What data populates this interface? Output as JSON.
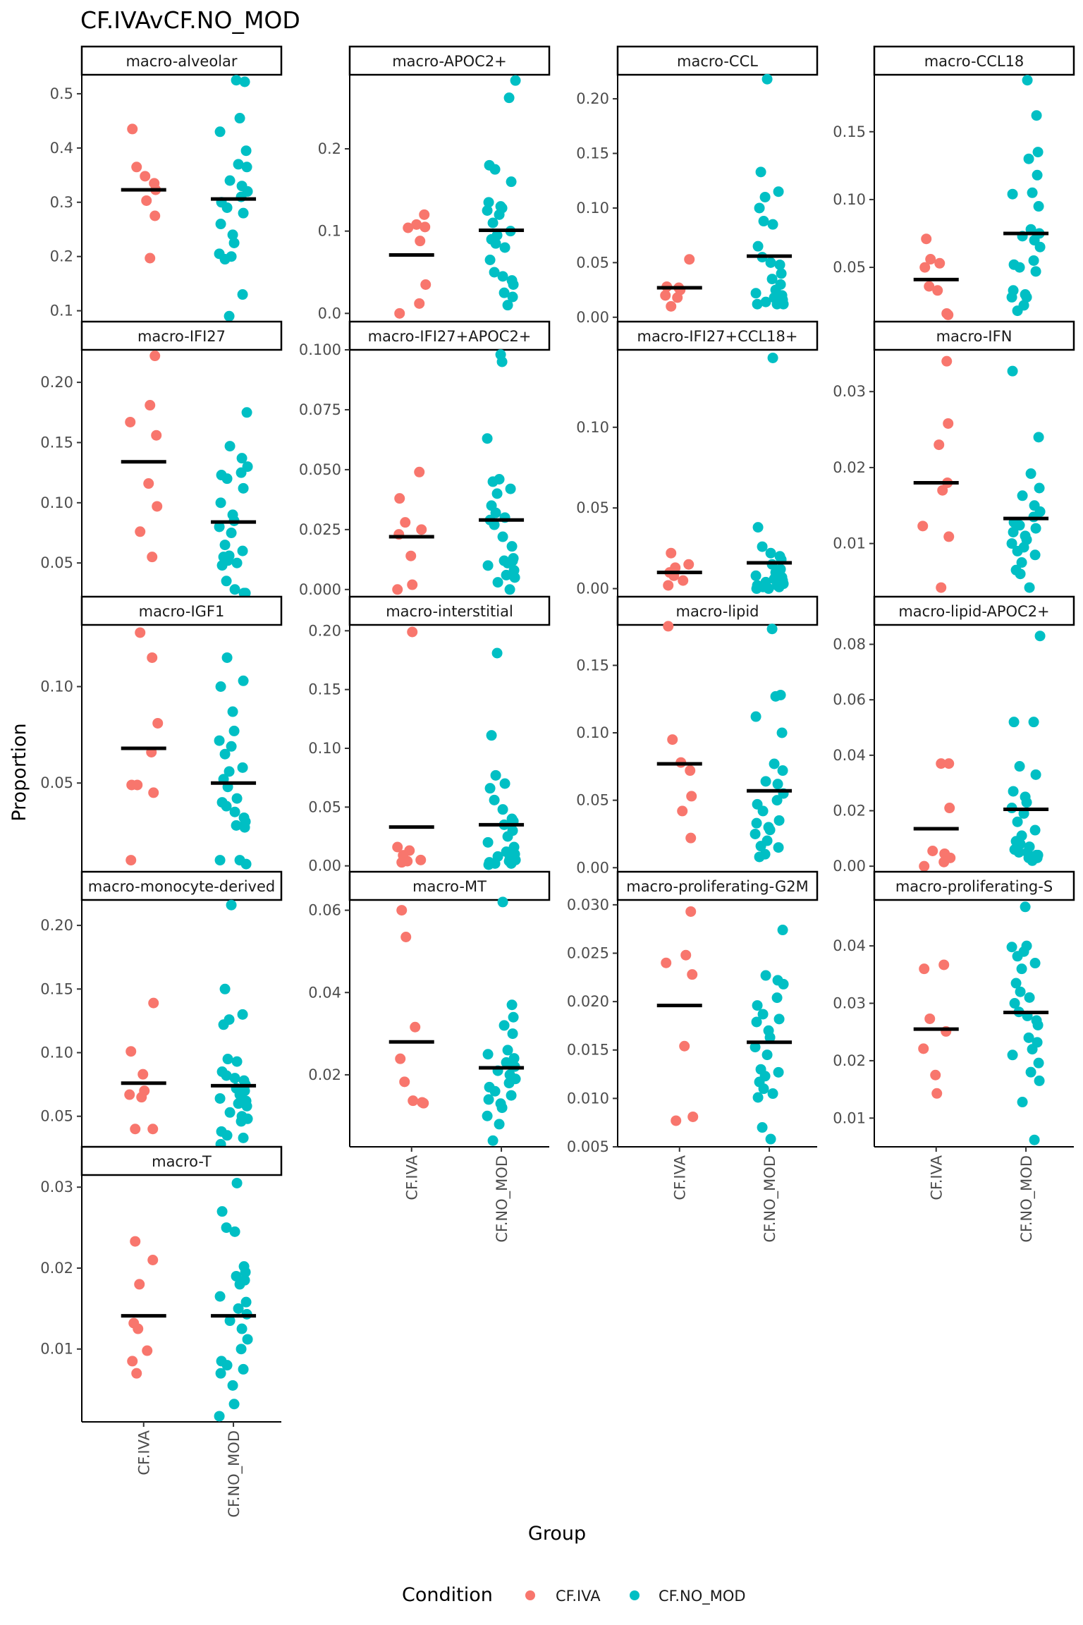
{
  "chart_data": {
    "type": "scatter",
    "title": "CF.IVAvCF.NO_MOD",
    "xlabel": "Group",
    "ylabel": "Proportion",
    "groups": [
      "CF.IVA",
      "CF.NO_MOD"
    ],
    "legend": {
      "title": "Condition",
      "position": "bottom",
      "entries": [
        {
          "label": "CF.IVA",
          "color": "#F8766D"
        },
        {
          "label": "CF.NO_MOD",
          "color": "#00BFC4"
        }
      ]
    },
    "mean_color": "#000000",
    "panels": [
      {
        "name": "macro-alveolar",
        "ylim": [
          0.08,
          0.535
        ],
        "ticks": [
          0.1,
          0.2,
          0.3,
          0.4,
          0.5
        ],
        "tick_labels": [
          "0.1",
          "0.2",
          "0.3",
          "0.4",
          "0.5"
        ],
        "means": [
          0.323,
          0.306
        ],
        "points": [
          [
            0.435,
            0.365,
            0.348,
            0.335,
            0.323,
            0.303,
            0.275,
            0.197
          ],
          [
            0.525,
            0.522,
            0.455,
            0.43,
            0.395,
            0.37,
            0.365,
            0.34,
            0.33,
            0.32,
            0.31,
            0.3,
            0.29,
            0.28,
            0.26,
            0.24,
            0.225,
            0.205,
            0.2,
            0.195,
            0.13,
            0.09
          ]
        ]
      },
      {
        "name": "macro-APOC2+",
        "ylim": [
          -0.01,
          0.29
        ],
        "ticks": [
          0.0,
          0.1,
          0.2
        ],
        "tick_labels": [
          "0.0",
          "0.1",
          "0.2"
        ],
        "means": [
          0.071,
          0.101
        ],
        "points": [
          [
            0.12,
            0.108,
            0.105,
            0.104,
            0.088,
            0.035,
            0.012,
            0.0
          ],
          [
            0.283,
            0.262,
            0.18,
            0.175,
            0.16,
            0.135,
            0.13,
            0.128,
            0.125,
            0.12,
            0.11,
            0.1,
            0.095,
            0.09,
            0.085,
            0.08,
            0.065,
            0.05,
            0.045,
            0.04,
            0.035,
            0.025,
            0.02,
            0.01
          ]
        ]
      },
      {
        "name": "macro-CCL",
        "ylim": [
          -0.004,
          0.222
        ],
        "ticks": [
          0.0,
          0.05,
          0.1,
          0.15,
          0.2
        ],
        "tick_labels": [
          "0.00",
          "0.05",
          "0.10",
          "0.15",
          "0.20"
        ],
        "means": [
          0.027,
          0.056
        ],
        "points": [
          [
            0.053,
            0.028,
            0.027,
            0.025,
            0.02,
            0.018,
            0.01
          ],
          [
            0.218,
            0.133,
            0.115,
            0.11,
            0.1,
            0.088,
            0.085,
            0.065,
            0.055,
            0.05,
            0.048,
            0.04,
            0.035,
            0.03,
            0.025,
            0.022,
            0.02,
            0.018,
            0.016,
            0.014,
            0.013,
            0.012,
            0.012,
            0.012
          ]
        ]
      },
      {
        "name": "macro-CCL18",
        "ylim": [
          0.01,
          0.192
        ],
        "ticks": [
          0.05,
          0.1,
          0.15
        ],
        "tick_labels": [
          "0.05",
          "0.10",
          "0.15"
        ],
        "means": [
          0.041,
          0.075
        ],
        "points": [
          [
            0.071,
            0.056,
            0.053,
            0.05,
            0.036,
            0.033,
            0.016,
            0.015
          ],
          [
            0.188,
            0.162,
            0.135,
            0.13,
            0.118,
            0.105,
            0.104,
            0.095,
            0.078,
            0.075,
            0.073,
            0.07,
            0.065,
            0.055,
            0.052,
            0.05,
            0.047,
            0.033,
            0.03,
            0.028,
            0.028,
            0.022,
            0.018
          ]
        ]
      },
      {
        "name": "macro-IFI27",
        "ylim": [
          0.022,
          0.227
        ],
        "ticks": [
          0.05,
          0.1,
          0.15,
          0.2
        ],
        "tick_labels": [
          "0.05",
          "0.10",
          "0.15",
          "0.20"
        ],
        "means": [
          0.134,
          0.084
        ],
        "points": [
          [
            0.222,
            0.181,
            0.167,
            0.156,
            0.116,
            0.097,
            0.076,
            0.055
          ],
          [
            0.175,
            0.147,
            0.137,
            0.13,
            0.125,
            0.123,
            0.12,
            0.112,
            0.1,
            0.09,
            0.085,
            0.08,
            0.075,
            0.065,
            0.06,
            0.056,
            0.055,
            0.052,
            0.05,
            0.048,
            0.035,
            0.028,
            0.025,
            0.025
          ]
        ]
      },
      {
        "name": "macro-IFI27+APOC2+",
        "ylim": [
          -0.003,
          0.1
        ],
        "ticks": [
          0.0,
          0.025,
          0.05,
          0.075,
          0.1
        ],
        "tick_labels": [
          "0.000",
          "0.025",
          "0.050",
          "0.075",
          "0.100"
        ],
        "means": [
          0.022,
          0.029
        ],
        "points": [
          [
            0.049,
            0.038,
            0.028,
            0.025,
            0.023,
            0.014,
            0.002,
            0.0
          ],
          [
            0.098,
            0.095,
            0.063,
            0.046,
            0.045,
            0.042,
            0.04,
            0.035,
            0.032,
            0.03,
            0.029,
            0.027,
            0.022,
            0.018,
            0.013,
            0.012,
            0.012,
            0.011,
            0.01,
            0.008,
            0.006,
            0.005,
            0.003,
            0.0
          ]
        ]
      },
      {
        "name": "macro-IFI27+CCL18+",
        "ylim": [
          -0.005,
          0.148
        ],
        "ticks": [
          0.0,
          0.05,
          0.1
        ],
        "tick_labels": [
          "0.00",
          "0.05",
          "0.10"
        ],
        "means": [
          0.01,
          0.016
        ],
        "points": [
          [
            0.022,
            0.015,
            0.013,
            0.01,
            0.008,
            0.005,
            0.002
          ],
          [
            0.143,
            0.038,
            0.026,
            0.022,
            0.02,
            0.018,
            0.015,
            0.012,
            0.01,
            0.008,
            0.007,
            0.006,
            0.005,
            0.004,
            0.003,
            0.003,
            0.002,
            0.002,
            0.001,
            0.001,
            0.0,
            0.0
          ]
        ]
      },
      {
        "name": "macro-IFN",
        "ylim": [
          0.003,
          0.0355
        ],
        "ticks": [
          0.01,
          0.02,
          0.03
        ],
        "tick_labels": [
          "0.01",
          "0.02",
          "0.03"
        ],
        "means": [
          0.018,
          0.0133
        ],
        "points": [
          [
            0.034,
            0.0258,
            0.023,
            0.018,
            0.017,
            0.0123,
            0.0109,
            0.0042
          ],
          [
            0.0327,
            0.024,
            0.0192,
            0.0173,
            0.0163,
            0.015,
            0.0142,
            0.0135,
            0.0128,
            0.0124,
            0.012,
            0.0115,
            0.011,
            0.0105,
            0.01,
            0.0095,
            0.009,
            0.0085,
            0.0075,
            0.0065,
            0.006,
            0.0042
          ]
        ]
      },
      {
        "name": "macro-IGF1",
        "ylim": [
          0.004,
          0.132
        ],
        "ticks": [
          0.05,
          0.1
        ],
        "tick_labels": [
          "0.05",
          "0.10"
        ],
        "means": [
          0.068,
          0.05
        ],
        "points": [
          [
            0.128,
            0.115,
            0.081,
            0.066,
            0.049,
            0.049,
            0.045,
            0.01
          ],
          [
            0.115,
            0.103,
            0.1,
            0.087,
            0.077,
            0.072,
            0.069,
            0.065,
            0.058,
            0.056,
            0.052,
            0.048,
            0.042,
            0.04,
            0.038,
            0.035,
            0.032,
            0.03,
            0.028,
            0.027,
            0.01,
            0.01,
            0.008
          ]
        ]
      },
      {
        "name": "macro-interstitial",
        "ylim": [
          -0.005,
          0.205
        ],
        "ticks": [
          0.0,
          0.05,
          0.1,
          0.15,
          0.2
        ],
        "tick_labels": [
          "0.00",
          "0.05",
          "0.10",
          "0.15",
          "0.20"
        ],
        "means": [
          0.033,
          0.035
        ],
        "points": [
          [
            0.199,
            0.016,
            0.013,
            0.009,
            0.005,
            0.004,
            0.003
          ],
          [
            0.181,
            0.111,
            0.077,
            0.07,
            0.066,
            0.056,
            0.048,
            0.04,
            0.038,
            0.035,
            0.03,
            0.025,
            0.02,
            0.016,
            0.012,
            0.01,
            0.008,
            0.006,
            0.005,
            0.004,
            0.003,
            0.002,
            0.002,
            0.001
          ]
        ]
      },
      {
        "name": "macro-lipid",
        "ylim": [
          -0.003,
          0.18
        ],
        "ticks": [
          0.0,
          0.05,
          0.1,
          0.15
        ],
        "tick_labels": [
          "0.00",
          "0.05",
          "0.10",
          "0.15"
        ],
        "means": [
          0.077,
          0.057
        ],
        "points": [
          [
            0.179,
            0.095,
            0.078,
            0.072,
            0.053,
            0.042,
            0.022
          ],
          [
            0.177,
            0.128,
            0.127,
            0.112,
            0.1,
            0.077,
            0.072,
            0.064,
            0.062,
            0.055,
            0.05,
            0.047,
            0.042,
            0.035,
            0.033,
            0.03,
            0.028,
            0.025,
            0.02,
            0.016,
            0.015,
            0.01,
            0.008
          ]
        ]
      },
      {
        "name": "macro-lipid-APOC2+",
        "ylim": [
          -0.002,
          0.087
        ],
        "ticks": [
          0.0,
          0.02,
          0.04,
          0.06,
          0.08
        ],
        "tick_labels": [
          "0.00",
          "0.02",
          "0.04",
          "0.06",
          "0.08"
        ],
        "means": [
          0.0135,
          0.0205
        ],
        "points": [
          [
            0.037,
            0.037,
            0.021,
            0.0055,
            0.0045,
            0.003,
            0.0015,
            0.0
          ],
          [
            0.083,
            0.052,
            0.052,
            0.036,
            0.033,
            0.027,
            0.025,
            0.023,
            0.021,
            0.019,
            0.016,
            0.013,
            0.011,
            0.009,
            0.008,
            0.007,
            0.006,
            0.005,
            0.005,
            0.004,
            0.004,
            0.003,
            0.003,
            0.002
          ]
        ]
      },
      {
        "name": "macro-monocyte-derived",
        "ylim": [
          0.026,
          0.22
        ],
        "ticks": [
          0.05,
          0.1,
          0.15,
          0.2
        ],
        "tick_labels": [
          "0.05",
          "0.10",
          "0.15",
          "0.20"
        ],
        "means": [
          0.076,
          0.074
        ],
        "points": [
          [
            0.139,
            0.101,
            0.083,
            0.07,
            0.067,
            0.065,
            0.04,
            0.04
          ],
          [
            0.216,
            0.15,
            0.13,
            0.126,
            0.122,
            0.095,
            0.093,
            0.085,
            0.082,
            0.08,
            0.078,
            0.075,
            0.072,
            0.07,
            0.067,
            0.064,
            0.062,
            0.06,
            0.058,
            0.053,
            0.05,
            0.048,
            0.046,
            0.038,
            0.035,
            0.033,
            0.028
          ]
        ]
      },
      {
        "name": "macro-MT",
        "ylim": [
          0.0025,
          0.0625
        ],
        "ticks": [
          0.02,
          0.04,
          0.06
        ],
        "tick_labels": [
          "0.02",
          "0.04",
          "0.06"
        ],
        "means": [
          0.028,
          0.0217
        ],
        "points": [
          [
            0.06,
            0.0535,
            0.0316,
            0.0239,
            0.0183,
            0.0137,
            0.0133,
            0.0131
          ],
          [
            0.062,
            0.037,
            0.034,
            0.032,
            0.03,
            0.026,
            0.025,
            0.024,
            0.023,
            0.022,
            0.021,
            0.02,
            0.019,
            0.018,
            0.017,
            0.016,
            0.015,
            0.014,
            0.013,
            0.012,
            0.01,
            0.008,
            0.004
          ]
        ]
      },
      {
        "name": "macro-proliferating-G2M",
        "ylim": [
          0.005,
          0.0305
        ],
        "ticks": [
          0.005,
          0.01,
          0.015,
          0.02,
          0.025,
          0.03
        ],
        "tick_labels": [
          "0.005",
          "0.010",
          "0.015",
          "0.020",
          "0.025",
          "0.030"
        ],
        "means": [
          0.0196,
          0.0158
        ],
        "points": [
          [
            0.0293,
            0.0248,
            0.024,
            0.0228,
            0.0154,
            0.0081,
            0.0077
          ],
          [
            0.0274,
            0.0227,
            0.0222,
            0.0218,
            0.0204,
            0.0196,
            0.0187,
            0.0182,
            0.0179,
            0.017,
            0.0163,
            0.0153,
            0.0145,
            0.013,
            0.0127,
            0.0123,
            0.0117,
            0.011,
            0.0105,
            0.0101,
            0.007,
            0.0058
          ]
        ]
      },
      {
        "name": "macro-proliferating-S",
        "ylim": [
          0.005,
          0.048
        ],
        "ticks": [
          0.01,
          0.02,
          0.03,
          0.04
        ],
        "tick_labels": [
          "0.01",
          "0.02",
          "0.03",
          "0.04"
        ],
        "means": [
          0.0255,
          0.0284
        ],
        "points": [
          [
            0.0367,
            0.036,
            0.0273,
            0.0251,
            0.0221,
            0.0175,
            0.0143
          ],
          [
            0.0468,
            0.04,
            0.0398,
            0.039,
            0.0382,
            0.037,
            0.036,
            0.0335,
            0.032,
            0.031,
            0.03,
            0.0285,
            0.0278,
            0.027,
            0.0262,
            0.024,
            0.0232,
            0.022,
            0.021,
            0.0196,
            0.018,
            0.0165,
            0.0128,
            0.0062
          ]
        ]
      },
      {
        "name": "macro-T",
        "ylim": [
          0.001,
          0.0315
        ],
        "ticks": [
          0.01,
          0.02,
          0.03
        ],
        "tick_labels": [
          "0.01",
          "0.02",
          "0.03"
        ],
        "means": [
          0.0141,
          0.0141
        ],
        "points": [
          [
            0.0233,
            0.021,
            0.018,
            0.0132,
            0.0125,
            0.0098,
            0.0085,
            0.007
          ],
          [
            0.0305,
            0.027,
            0.025,
            0.0245,
            0.0202,
            0.0195,
            0.019,
            0.0185,
            0.018,
            0.0165,
            0.0158,
            0.015,
            0.0143,
            0.0135,
            0.0125,
            0.0112,
            0.01,
            0.0085,
            0.008,
            0.0075,
            0.007,
            0.0055,
            0.0032,
            0.0017
          ]
        ]
      }
    ]
  }
}
